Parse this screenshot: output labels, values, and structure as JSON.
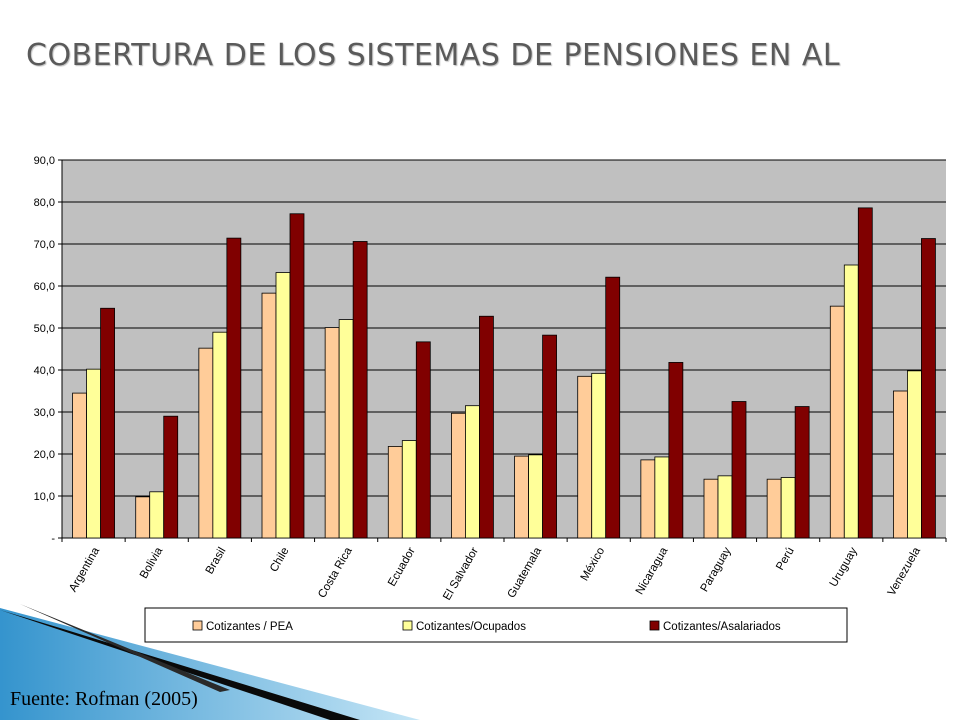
{
  "title": "COBERTURA DE LOS SISTEMAS DE PENSIONES  EN AL",
  "source": "Fuente: Rofman (2005)",
  "colors": {
    "plot_bg": "#c0c0c0",
    "series": [
      "#ffcc99",
      "#ffff99",
      "#800000"
    ]
  },
  "chart_data": {
    "type": "bar",
    "categories": [
      "Argentina",
      "Bolivia",
      "Brasil",
      "Chile",
      "Costa Rica",
      "Ecuador",
      "El Salvador",
      "Guatemala",
      "México",
      "Nicaragua",
      "Paraguay",
      "Perú",
      "Uruguay",
      "Venezuela"
    ],
    "series": [
      {
        "name": "Cotizantes / PEA",
        "values": [
          34.5,
          9.8,
          45.2,
          58.3,
          50.1,
          21.8,
          29.7,
          19.5,
          38.5,
          18.6,
          14.0,
          14.0,
          55.2,
          35.0
        ]
      },
      {
        "name": "Cotizantes/Ocupados",
        "values": [
          40.2,
          11.0,
          49.0,
          63.2,
          52.0,
          23.2,
          31.5,
          19.8,
          39.2,
          19.3,
          14.8,
          14.4,
          65.0,
          39.8
        ]
      },
      {
        "name": "Cotizantes/Asalariados",
        "values": [
          54.7,
          29.0,
          71.4,
          77.2,
          70.6,
          46.7,
          52.8,
          48.3,
          62.1,
          41.8,
          32.5,
          31.3,
          78.6,
          71.3
        ]
      }
    ],
    "yticks": [
      "-",
      "10,0",
      "20,0",
      "30,0",
      "40,0",
      "50,0",
      "60,0",
      "70,0",
      "80,0",
      "90,0"
    ],
    "ylim": [
      0,
      90
    ],
    "grid": true,
    "legend_position": "bottom"
  }
}
